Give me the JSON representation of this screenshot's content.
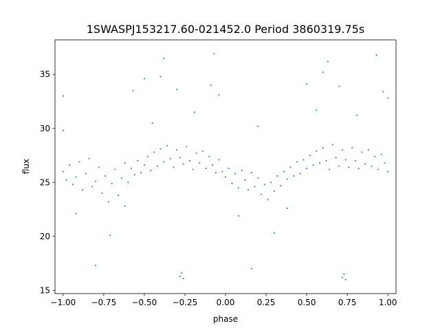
{
  "chart_data": {
    "type": "scatter",
    "title": "1SWASPJ153217.60-021452.0 Period 3860319.75s",
    "xlabel": "phase",
    "ylabel": "flux",
    "xlim": [
      -1.05,
      1.05
    ],
    "ylim": [
      14.7,
      38.2
    ],
    "grid": false,
    "marker_color": "#1f77b4",
    "x_ticks": [
      {
        "value": -1.0,
        "label": "−1.00"
      },
      {
        "value": -0.75,
        "label": "−0.75"
      },
      {
        "value": -0.5,
        "label": "−0.50"
      },
      {
        "value": -0.25,
        "label": "−0.25"
      },
      {
        "value": 0.0,
        "label": "0.00"
      },
      {
        "value": 0.25,
        "label": "0.25"
      },
      {
        "value": 0.5,
        "label": "0.50"
      },
      {
        "value": 0.75,
        "label": "0.75"
      },
      {
        "value": 1.0,
        "label": "1.00"
      }
    ],
    "y_ticks": [
      {
        "value": 15,
        "label": "15"
      },
      {
        "value": 20,
        "label": "20"
      },
      {
        "value": 25,
        "label": "25"
      },
      {
        "value": 30,
        "label": "30"
      },
      {
        "value": 35,
        "label": "35"
      }
    ],
    "series": [
      {
        "points": [
          [
            -1.0,
            26.0
          ],
          [
            -0.98,
            25.2
          ],
          [
            -0.96,
            26.6
          ],
          [
            -0.94,
            24.8
          ],
          [
            -0.92,
            25.5
          ],
          [
            -0.9,
            26.9
          ],
          [
            -0.88,
            24.3
          ],
          [
            -0.86,
            25.8
          ],
          [
            -0.84,
            27.2
          ],
          [
            -0.82,
            24.6
          ],
          [
            -0.8,
            25.1
          ],
          [
            -0.78,
            26.4
          ],
          [
            -0.76,
            24.0
          ],
          [
            -0.74,
            25.6
          ],
          [
            -0.72,
            23.2
          ],
          [
            -0.7,
            24.9
          ],
          [
            -0.68,
            26.2
          ],
          [
            -0.66,
            23.8
          ],
          [
            -0.64,
            25.4
          ],
          [
            -0.62,
            26.8
          ],
          [
            -0.6,
            25.0
          ],
          [
            -0.58,
            26.3
          ],
          [
            -0.56,
            25.7
          ],
          [
            -0.54,
            27.0
          ],
          [
            -0.52,
            25.9
          ],
          [
            -0.5,
            26.6
          ],
          [
            -0.48,
            27.4
          ],
          [
            -0.46,
            26.1
          ],
          [
            -0.44,
            27.8
          ],
          [
            -0.42,
            26.5
          ],
          [
            -0.4,
            28.1
          ],
          [
            -0.38,
            26.9
          ],
          [
            -0.36,
            28.4
          ],
          [
            -0.34,
            27.2
          ],
          [
            -0.32,
            26.4
          ],
          [
            -0.3,
            28.0
          ],
          [
            -0.28,
            27.3
          ],
          [
            -0.26,
            26.7
          ],
          [
            -0.24,
            28.3
          ],
          [
            -0.22,
            27.0
          ],
          [
            -0.2,
            26.2
          ],
          [
            -0.18,
            27.7
          ],
          [
            -0.16,
            26.8
          ],
          [
            -0.14,
            27.9
          ],
          [
            -0.12,
            26.3
          ],
          [
            -0.1,
            27.4
          ],
          [
            -0.08,
            26.6
          ],
          [
            -0.06,
            25.9
          ],
          [
            -0.04,
            27.1
          ],
          [
            -0.02,
            26.0
          ],
          [
            0.0,
            25.5
          ],
          [
            0.02,
            26.3
          ],
          [
            0.04,
            24.9
          ],
          [
            0.06,
            25.8
          ],
          [
            0.08,
            24.5
          ],
          [
            0.1,
            26.1
          ],
          [
            0.12,
            25.2
          ],
          [
            0.14,
            24.3
          ],
          [
            0.16,
            25.9
          ],
          [
            0.18,
            24.6
          ],
          [
            0.2,
            25.4
          ],
          [
            0.22,
            23.9
          ],
          [
            0.24,
            24.8
          ],
          [
            0.26,
            23.4
          ],
          [
            0.28,
            25.0
          ],
          [
            0.3,
            24.2
          ],
          [
            0.32,
            25.6
          ],
          [
            0.34,
            24.7
          ],
          [
            0.36,
            26.0
          ],
          [
            0.38,
            25.3
          ],
          [
            0.4,
            26.4
          ],
          [
            0.42,
            25.6
          ],
          [
            0.44,
            26.9
          ],
          [
            0.46,
            25.8
          ],
          [
            0.48,
            27.1
          ],
          [
            0.5,
            26.3
          ],
          [
            0.52,
            27.5
          ],
          [
            0.54,
            26.6
          ],
          [
            0.56,
            27.9
          ],
          [
            0.58,
            26.8
          ],
          [
            0.6,
            28.2
          ],
          [
            0.62,
            27.0
          ],
          [
            0.64,
            26.2
          ],
          [
            0.66,
            28.5
          ],
          [
            0.68,
            27.3
          ],
          [
            0.7,
            26.5
          ],
          [
            0.72,
            28.0
          ],
          [
            0.74,
            27.1
          ],
          [
            0.76,
            26.4
          ],
          [
            0.78,
            28.2
          ],
          [
            0.8,
            27.0
          ],
          [
            0.82,
            26.3
          ],
          [
            0.84,
            27.8
          ],
          [
            0.86,
            26.7
          ],
          [
            0.88,
            28.0
          ],
          [
            0.9,
            26.5
          ],
          [
            0.92,
            27.4
          ],
          [
            0.94,
            26.2
          ],
          [
            0.96,
            27.6
          ],
          [
            0.98,
            26.8
          ],
          [
            1.0,
            26.0
          ],
          [
            -1.0,
            33.0
          ],
          [
            -1.0,
            29.8
          ],
          [
            -0.57,
            33.5
          ],
          [
            -0.45,
            30.5
          ],
          [
            -0.4,
            34.8
          ],
          [
            -0.3,
            33.6
          ],
          [
            -0.28,
            16.3
          ],
          [
            -0.27,
            16.6
          ],
          [
            -0.26,
            16.1
          ],
          [
            -0.19,
            31.5
          ],
          [
            -0.09,
            34.0
          ],
          [
            -0.04,
            33.1
          ],
          [
            0.3,
            20.3
          ],
          [
            0.56,
            31.7
          ],
          [
            0.6,
            35.2
          ],
          [
            0.7,
            33.9
          ],
          [
            0.72,
            16.2
          ],
          [
            0.73,
            16.5
          ],
          [
            0.74,
            16.0
          ],
          [
            0.81,
            31.2
          ],
          [
            0.97,
            33.4
          ],
          [
            1.0,
            32.8
          ],
          [
            -0.71,
            20.1
          ],
          [
            -0.8,
            17.3
          ],
          [
            0.16,
            17.0
          ],
          [
            -0.38,
            36.5
          ],
          [
            0.63,
            36.2
          ],
          [
            -0.07,
            36.9
          ],
          [
            0.93,
            36.8
          ],
          [
            -0.92,
            22.1
          ],
          [
            0.08,
            21.9
          ],
          [
            0.5,
            34.1
          ],
          [
            -0.5,
            34.6
          ],
          [
            0.2,
            30.2
          ],
          [
            -0.62,
            22.8
          ],
          [
            0.38,
            22.6
          ]
        ]
      }
    ]
  }
}
